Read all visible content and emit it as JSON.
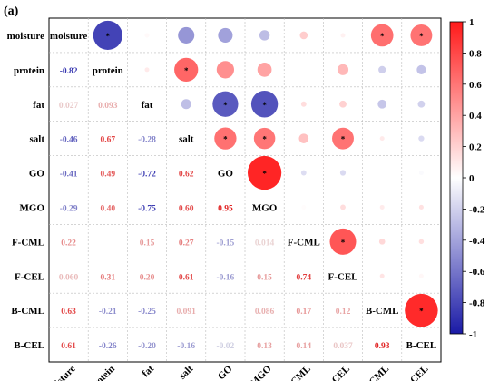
{
  "panel_label": "(a)",
  "chart_data": {
    "type": "heatmap",
    "variables": [
      "moisture",
      "protein",
      "fat",
      "salt",
      "GO",
      "MGO",
      "F-CML",
      "F-CEL",
      "B-CML",
      "B-CEL"
    ],
    "lower_triangle_values": [
      [],
      [
        "-0.82"
      ],
      [
        "0.027",
        "0.093"
      ],
      [
        "-0.46",
        "0.67",
        "-0.28"
      ],
      [
        "-0.41",
        "0.49",
        "-0.72",
        "0.62"
      ],
      [
        "-0.29",
        "0.40",
        "-0.75",
        "0.60",
        "0.95"
      ],
      [
        "0.22",
        "",
        "0.15",
        "0.27",
        "-0.15",
        "0.014"
      ],
      [
        "0.060",
        "0.31",
        "0.20",
        "0.61",
        "-0.16",
        "0.15",
        "0.74"
      ],
      [
        "0.63",
        "-0.21",
        "-0.25",
        "0.091",
        "",
        "0.086",
        "0.17",
        "0.12"
      ],
      [
        "0.61",
        "-0.26",
        "-0.20",
        "-0.16",
        "-0.02",
        "0.13",
        "0.14",
        "0.037",
        "0.93"
      ]
    ],
    "upper_triangle_values": [
      [
        null,
        -0.82,
        0.027,
        -0.46,
        -0.41,
        -0.29,
        0.22,
        0.06,
        0.63,
        0.61
      ],
      [
        null,
        null,
        0.093,
        0.67,
        0.49,
        0.4,
        0.0,
        0.31,
        -0.21,
        -0.26
      ],
      [
        null,
        null,
        null,
        -0.28,
        -0.72,
        -0.75,
        0.15,
        0.2,
        -0.25,
        -0.2
      ],
      [
        null,
        null,
        null,
        null,
        0.62,
        0.6,
        0.27,
        0.61,
        0.091,
        -0.16
      ],
      [
        null,
        null,
        null,
        null,
        null,
        0.95,
        -0.15,
        -0.16,
        0.0,
        -0.02
      ],
      [
        null,
        null,
        null,
        null,
        null,
        null,
        0.014,
        0.15,
        0.086,
        0.13
      ],
      [
        null,
        null,
        null,
        null,
        null,
        null,
        null,
        0.74,
        0.17,
        0.14
      ],
      [
        null,
        null,
        null,
        null,
        null,
        null,
        null,
        null,
        0.12,
        0.037
      ],
      [
        null,
        null,
        null,
        null,
        null,
        null,
        null,
        null,
        null,
        0.93
      ]
    ],
    "significant_marker": "*",
    "significant_cells": [
      [
        0,
        1
      ],
      [
        0,
        8
      ],
      [
        0,
        9
      ],
      [
        1,
        3
      ],
      [
        2,
        4
      ],
      [
        2,
        5
      ],
      [
        3,
        4
      ],
      [
        3,
        5
      ],
      [
        3,
        7
      ],
      [
        4,
        5
      ],
      [
        6,
        7
      ],
      [
        8,
        9
      ]
    ],
    "colorbar": {
      "min": -1,
      "max": 1,
      "ticks": [
        "1",
        "0.8",
        "0.6",
        "0.4",
        "0.2",
        "0",
        "-0.2",
        "-0.4",
        "-0.6",
        "-0.8",
        "-1"
      ]
    },
    "colors": {
      "negative": "#1a1aa6",
      "zero": "#ffffff",
      "positive": "#ff1a1a"
    }
  }
}
